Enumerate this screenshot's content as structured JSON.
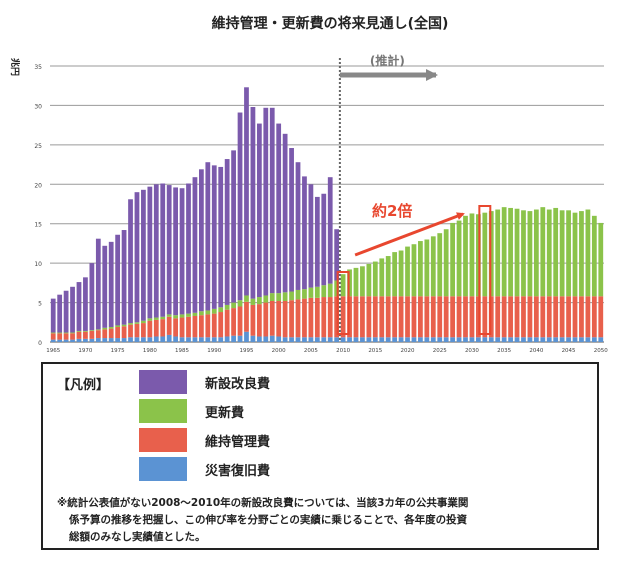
{
  "chart_data": {
    "type": "bar",
    "title": "維持管理・更新費の将来見通し(全国)",
    "ylabel": "兆円",
    "ylim": [
      0,
      35
    ],
    "yticks": [
      0,
      5,
      10,
      15,
      20,
      25,
      30,
      35
    ],
    "xtick_labels": [
      "1965",
      "1970",
      "1975",
      "1980",
      "1985",
      "1990",
      "1995",
      "2000",
      "2005",
      "2010",
      "2015",
      "2020",
      "2025",
      "2030",
      "2035",
      "2040",
      "2045",
      "2050"
    ],
    "stacked": true,
    "grid": true,
    "years": [
      1965,
      1966,
      1967,
      1968,
      1969,
      1970,
      1971,
      1972,
      1973,
      1974,
      1975,
      1976,
      1977,
      1978,
      1979,
      1980,
      1981,
      1982,
      1983,
      1984,
      1985,
      1986,
      1987,
      1988,
      1989,
      1990,
      1991,
      1992,
      1993,
      1994,
      1995,
      1996,
      1997,
      1998,
      1999,
      2000,
      2001,
      2002,
      2003,
      2004,
      2005,
      2006,
      2007,
      2008,
      2009,
      2010,
      2011,
      2012,
      2013,
      2014,
      2015,
      2016,
      2017,
      2018,
      2019,
      2020,
      2021,
      2022,
      2023,
      2024,
      2025,
      2026,
      2027,
      2028,
      2029,
      2030,
      2031,
      2032,
      2033,
      2034,
      2035,
      2036,
      2037,
      2038,
      2039,
      2040,
      2041,
      2042,
      2043,
      2044,
      2045,
      2046,
      2047,
      2048,
      2049,
      2050
    ],
    "series": [
      {
        "name": "災害復旧費",
        "color": "#5b93d3",
        "values": [
          0.3,
          0.3,
          0.3,
          0.3,
          0.4,
          0.4,
          0.4,
          0.5,
          0.5,
          0.5,
          0.5,
          0.5,
          0.6,
          0.6,
          0.6,
          0.6,
          0.7,
          0.7,
          0.9,
          0.7,
          0.6,
          0.6,
          0.6,
          0.6,
          0.6,
          0.6,
          0.6,
          0.7,
          0.8,
          0.8,
          1.3,
          0.8,
          0.7,
          0.7,
          0.8,
          0.7,
          0.6,
          0.6,
          0.6,
          0.6,
          0.6,
          0.6,
          0.6,
          0.6,
          0.6,
          0.6,
          0.6,
          0.6,
          0.6,
          0.6,
          0.6,
          0.6,
          0.6,
          0.6,
          0.6,
          0.6,
          0.6,
          0.6,
          0.6,
          0.6,
          0.6,
          0.6,
          0.6,
          0.6,
          0.6,
          0.6,
          0.6,
          0.6,
          0.6,
          0.6,
          0.6,
          0.6,
          0.6,
          0.6,
          0.6,
          0.6,
          0.6,
          0.6,
          0.6,
          0.6,
          0.6,
          0.6,
          0.6,
          0.6,
          0.6,
          0.6
        ]
      },
      {
        "name": "維持管理費",
        "color": "#e8604c",
        "values": [
          0.8,
          0.8,
          0.8,
          0.8,
          0.9,
          0.9,
          1.0,
          1.0,
          1.1,
          1.2,
          1.4,
          1.5,
          1.6,
          1.7,
          1.8,
          2.1,
          2.1,
          2.2,
          2.3,
          2.3,
          2.5,
          2.6,
          2.7,
          2.8,
          2.9,
          3.0,
          3.2,
          3.4,
          3.5,
          3.7,
          3.8,
          3.9,
          4.1,
          4.3,
          4.4,
          4.5,
          4.6,
          4.7,
          4.8,
          4.9,
          5.0,
          5.0,
          5.1,
          5.1,
          5.2,
          5.2,
          5.2,
          5.2,
          5.2,
          5.2,
          5.2,
          5.2,
          5.2,
          5.2,
          5.2,
          5.2,
          5.2,
          5.2,
          5.2,
          5.2,
          5.2,
          5.2,
          5.2,
          5.2,
          5.2,
          5.2,
          5.2,
          5.2,
          5.2,
          5.2,
          5.2,
          5.2,
          5.2,
          5.2,
          5.2,
          5.2,
          5.2,
          5.2,
          5.2,
          5.2,
          5.2,
          5.2,
          5.2,
          5.2,
          5.2,
          5.2
        ]
      },
      {
        "name": "更新費",
        "color": "#8bc34a",
        "values": [
          0.1,
          0.1,
          0.1,
          0.1,
          0.1,
          0.1,
          0.1,
          0.1,
          0.2,
          0.2,
          0.2,
          0.2,
          0.2,
          0.2,
          0.3,
          0.3,
          0.3,
          0.3,
          0.3,
          0.4,
          0.4,
          0.4,
          0.4,
          0.5,
          0.5,
          0.6,
          0.6,
          0.6,
          0.7,
          0.8,
          0.8,
          0.8,
          0.9,
          0.9,
          1.0,
          1.0,
          1.1,
          1.1,
          1.2,
          1.2,
          1.3,
          1.4,
          1.5,
          1.7,
          2.0,
          2.8,
          3.4,
          3.6,
          3.8,
          4.1,
          4.4,
          4.8,
          5.1,
          5.6,
          5.8,
          6.3,
          6.6,
          7.0,
          7.2,
          7.6,
          8.0,
          8.5,
          9.3,
          9.6,
          10.2,
          10.5,
          10.4,
          10.6,
          10.8,
          11.0,
          11.3,
          11.2,
          11.1,
          10.9,
          10.8,
          11.0,
          11.3,
          11.0,
          11.2,
          10.9,
          10.9,
          10.6,
          10.8,
          11.0,
          10.2,
          9.3
        ]
      },
      {
        "name": "新設改良費",
        "color": "#7b5aac",
        "values": [
          4.3,
          4.8,
          5.3,
          5.8,
          6.2,
          6.8,
          8.5,
          11.5,
          10.4,
          10.8,
          11.5,
          12.0,
          15.7,
          16.5,
          16.6,
          16.7,
          16.9,
          16.9,
          16.4,
          16.2,
          16.0,
          16.5,
          17.2,
          18.0,
          18.8,
          18.2,
          17.8,
          18.5,
          19.3,
          23.8,
          26.4,
          24.3,
          22.0,
          23.8,
          23.5,
          21.5,
          20.1,
          18.2,
          16.2,
          14.3,
          13.1,
          11.4,
          11.6,
          13.5,
          6.5,
          0,
          0,
          0,
          0,
          0,
          0,
          0,
          0,
          0,
          0,
          0,
          0,
          0,
          0,
          0,
          0,
          0,
          0,
          0,
          0,
          0,
          0,
          0,
          0,
          0,
          0,
          0,
          0,
          0,
          0,
          0,
          0,
          0,
          0,
          0,
          0,
          0,
          0,
          0,
          0,
          0
        ]
      }
    ],
    "forecast_start": 2010,
    "annotations": {
      "forecast_label": "(推計)",
      "growth_label": "約2倍"
    },
    "highlighted_years": [
      2010,
      2032
    ]
  },
  "legend": {
    "title": "【凡例】",
    "items": [
      {
        "label": "新設改良費",
        "color": "#7b5aac"
      },
      {
        "label": "更新費",
        "color": "#8bc34a"
      },
      {
        "label": "維持管理費",
        "color": "#e8604c"
      },
      {
        "label": "災害復旧費",
        "color": "#5b93d3"
      }
    ],
    "note_lines": [
      "※統計公表値がない2008〜2010年の新設改良費については、当該3カ年の公共事業関",
      "係予算の推移を把握し、この伸び率を分野ごとの実績に乗じることで、各年度の投資",
      "総額のみなし実績値とした。"
    ]
  }
}
